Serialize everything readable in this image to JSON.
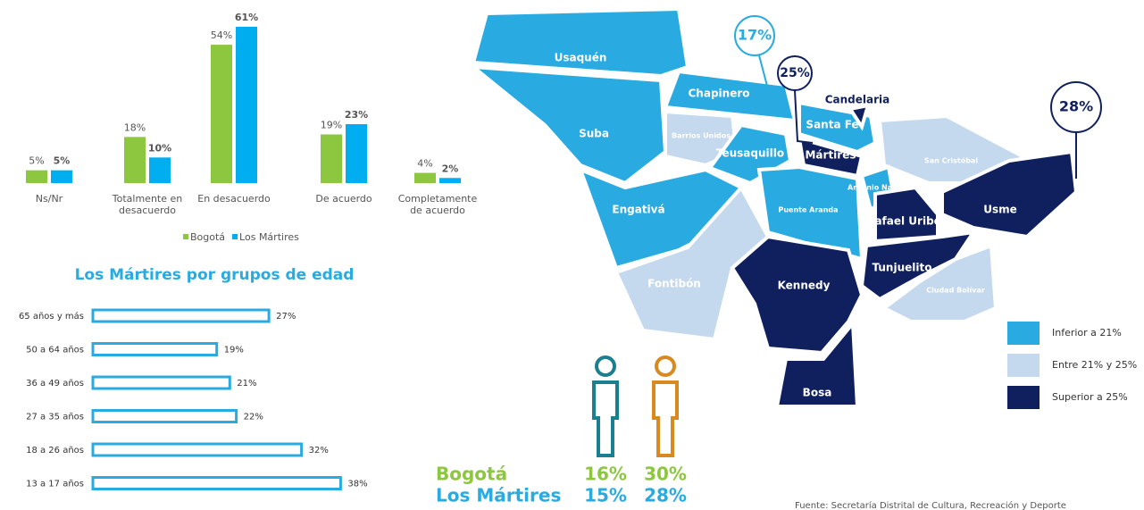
{
  "chart_data": [
    {
      "type": "bar",
      "categories": [
        "Ns/Nr",
        "Totalmente en desacuerdo",
        "En desacuerdo",
        "De acuerdo",
        "Completamente de acuerdo"
      ],
      "series": [
        {
          "name": "Bogotá",
          "color": "#8dc63f",
          "values": [
            5,
            18,
            54,
            19,
            4
          ],
          "value_labels": [
            "5%",
            "18%",
            "54%",
            "19%",
            "4%"
          ]
        },
        {
          "name": "Los Mártires",
          "color": "#00aeef",
          "values": [
            5,
            10,
            61,
            23,
            2
          ],
          "value_labels": [
            "5%",
            "10%",
            "61%",
            "23%",
            "2%"
          ]
        }
      ]
    },
    {
      "type": "hbar",
      "title": "Los Mártires por grupos de edad",
      "color": "#29abe2",
      "categories": [
        "65 años y más",
        "50 a 64 años",
        "36 a 49 años",
        "27 a 35 años",
        "18 a 26 años",
        "13 a 17 años"
      ],
      "values": [
        27,
        19,
        21,
        22,
        32,
        38
      ],
      "value_labels": [
        "27%",
        "19%",
        "21%",
        "22%",
        "32%",
        "38%"
      ]
    }
  ],
  "map": {
    "legend": [
      {
        "label": "Inferior a 21%",
        "color": "#29abe2"
      },
      {
        "label": "Entre 21% y 25%",
        "color": "#c5d9ee"
      },
      {
        "label": "Superior a 25%",
        "color": "#10205e"
      }
    ],
    "districts": [
      {
        "name": "Usaquén",
        "level": 0
      },
      {
        "name": "Suba",
        "level": 0
      },
      {
        "name": "Chapinero",
        "level": 0
      },
      {
        "name": "Barrios Unidos",
        "level": 1
      },
      {
        "name": "Teusaquillo",
        "level": 0
      },
      {
        "name": "Santa Fe",
        "level": 0
      },
      {
        "name": "Candelaria",
        "level": 2
      },
      {
        "name": "Mártires",
        "level": 2
      },
      {
        "name": "San Cristóbal",
        "level": 1
      },
      {
        "name": "Engativá",
        "level": 0
      },
      {
        "name": "Puente Aranda",
        "level": 0
      },
      {
        "name": "Antonio Nariño",
        "level": 0
      },
      {
        "name": "Rafael Uribe",
        "level": 2
      },
      {
        "name": "Usme",
        "level": 2
      },
      {
        "name": "Fontibón",
        "level": 1
      },
      {
        "name": "Kennedy",
        "level": 2
      },
      {
        "name": "Tunjuelito",
        "level": 2
      },
      {
        "name": "Ciudad Bolívar",
        "level": 1
      },
      {
        "name": "Bosa",
        "level": 2
      }
    ],
    "callouts": [
      {
        "label": "17%",
        "level": 0
      },
      {
        "label": "25%",
        "level": 2
      },
      {
        "label": "28%",
        "level": 2
      }
    ]
  },
  "gender": {
    "rows": [
      {
        "name": "Bogotá",
        "color": "#8dc63f",
        "cells": [
          "16%",
          "30%"
        ]
      },
      {
        "name": "Los Mártires",
        "color": "#29abe2",
        "cells": [
          "15%",
          "28%"
        ]
      }
    ]
  },
  "source": "Fuente: Secretaría Distrital de Cultura, Recreación y Deporte"
}
